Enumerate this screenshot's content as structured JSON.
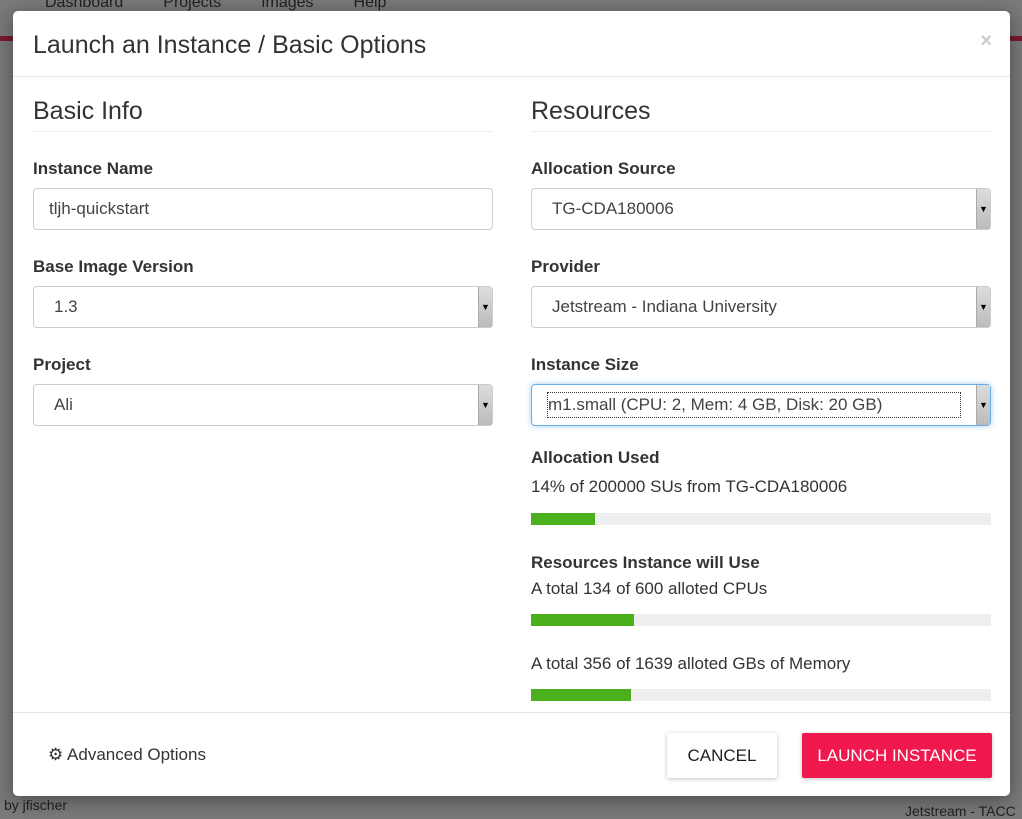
{
  "background": {
    "nav": [
      "Dashboard",
      "Projects",
      "Images",
      "Help"
    ],
    "snippets": [
      "by jfischer",
      "Jetstream - TACC"
    ]
  },
  "modal": {
    "title": "Launch an Instance / Basic Options",
    "close": "×",
    "basic_info": {
      "heading": "Basic Info",
      "instance_name": {
        "label": "Instance Name",
        "value": "tljh-quickstart"
      },
      "base_image_version": {
        "label": "Base Image Version",
        "value": "1.3"
      },
      "project": {
        "label": "Project",
        "value": "Ali"
      }
    },
    "resources": {
      "heading": "Resources",
      "allocation_source": {
        "label": "Allocation Source",
        "value": "TG-CDA180006"
      },
      "provider": {
        "label": "Provider",
        "value": "Jetstream - Indiana University"
      },
      "instance_size": {
        "label": "Instance Size",
        "value": "m1.small (CPU: 2, Mem: 4 GB, Disk: 20 GB)"
      },
      "allocation_used": {
        "label": "Allocation Used",
        "text": "14% of 200000 SUs from TG-CDA180006",
        "percent": 14
      },
      "will_use": {
        "label": "Resources Instance will Use",
        "cpu": {
          "text": "A total 134 of 600 alloted CPUs",
          "percent": 22.3
        },
        "memory": {
          "text": "A total 356 of 1639 alloted GBs of Memory",
          "percent": 21.7
        }
      }
    },
    "footer": {
      "advanced": "Advanced Options",
      "cancel": "CANCEL",
      "launch": "LAUNCH INSTANCE"
    }
  },
  "colors": {
    "accent": "#f0194f",
    "progress": "#4caf1e"
  }
}
